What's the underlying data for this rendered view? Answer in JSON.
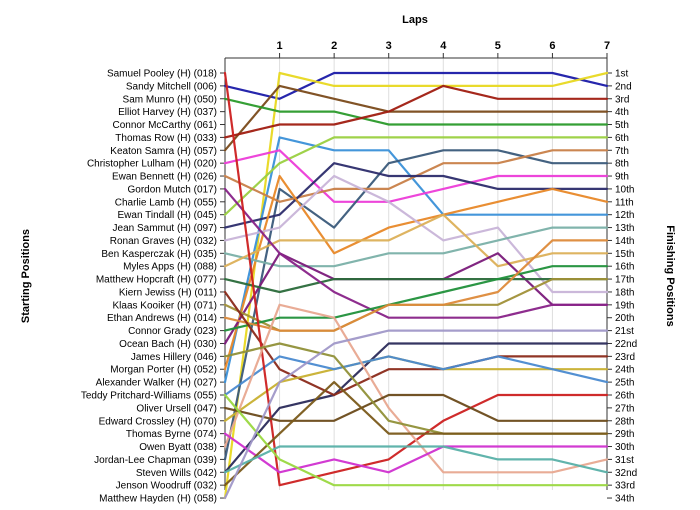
{
  "chart_data": {
    "type": "line",
    "title": "",
    "x_axis_title": "Laps",
    "left_axis_title": "Starting Positions",
    "right_axis_title": "Finishing Positions",
    "laps": [
      1,
      2,
      3,
      4,
      5,
      6,
      7
    ],
    "x_range": [
      0,
      7
    ],
    "y_range": [
      1,
      34
    ],
    "grid": "vertical lines at each lap",
    "drivers": [
      "Samuel Pooley (H) (018)",
      "Sandy Mitchell (006)",
      "Sam Munro (H) (050)",
      "Elliot Harvey (H) (037)",
      "Connor McCarthy (061)",
      "Thomas Row (H) (033)",
      "Keaton Samra (H) (057)",
      "Christopher Lulham (H) (020)",
      "Ewan Bennett (H) (026)",
      "Gordon Mutch (017)",
      "Charlie Lamb (H) (055)",
      "Ewan Tindall (H) (045)",
      "Jean Sammut (H) (097)",
      "Ronan Graves (H) (032)",
      "Ben Kasperczak (H) (035)",
      "Myles Apps (H) (088)",
      "Matthew Hopcraft (H) (077)",
      "Kiern Jewiss (H) (011)",
      "Klaas Kooiker (H) (071)",
      "Ethan Andrews (H) (014)",
      "Connor Grady (023)",
      "Ocean Bach (H) (030)",
      "James Hillery (046)",
      "Morgan Porter (H) (052)",
      "Alexander Walker (H) (027)",
      "Teddy Pritchard-Williams (055)",
      "Oliver Ursell (047)",
      "Edward Crossley (H) (070)",
      "Thomas Byrne (074)",
      "Owen Byatt (038)",
      "Jordan-Lee Chapman (039)",
      "Steven Wills (042)",
      "Jenson Woodruff (032)",
      "Matthew Hayden (H) (058)"
    ],
    "finishing_positions": [
      "1st",
      "2nd",
      "3rd",
      "4th",
      "5th",
      "6th",
      "7th",
      "8th",
      "9th",
      "10th",
      "11th",
      "12th",
      "13th",
      "14th",
      "15th",
      "16th",
      "17th",
      "18th",
      "19th",
      "20th",
      "21st",
      "22nd",
      "23rd",
      "24th",
      "25th",
      "26th",
      "27th",
      "28th",
      "29th",
      "30th",
      "31st",
      "32nd",
      "33rd",
      "34th"
    ],
    "series": [
      {
        "color": "#1a1aa8",
        "positions": [
          2,
          3,
          1,
          1,
          1,
          1,
          1,
          2
        ]
      },
      {
        "color": "#e8d820",
        "positions": [
          34,
          1,
          2,
          2,
          2,
          2,
          2,
          1
        ]
      },
      {
        "color": "#7a4a1a",
        "positions": [
          7,
          2,
          3,
          4,
          4,
          4,
          4,
          4
        ]
      },
      {
        "color": "#2a9a2a",
        "positions": [
          3,
          4,
          4,
          5,
          5,
          5,
          5,
          5
        ]
      },
      {
        "color": "#a01c10",
        "positions": [
          6,
          5,
          5,
          4,
          2,
          3,
          3,
          3
        ]
      },
      {
        "color": "#3a90d8",
        "positions": [
          25,
          6,
          7,
          7,
          12,
          12,
          12,
          12
        ]
      },
      {
        "color": "#9ad040",
        "positions": [
          12,
          8,
          6,
          6,
          6,
          6,
          6,
          6
        ]
      },
      {
        "color": "#ec3cd8",
        "positions": [
          8,
          7,
          11,
          11,
          10,
          9,
          9,
          9
        ]
      },
      {
        "color": "#3a5a7a",
        "positions": [
          31,
          10,
          13,
          8,
          7,
          7,
          8,
          8
        ]
      },
      {
        "color": "#c88048",
        "positions": [
          9,
          11,
          10,
          10,
          8,
          8,
          7,
          7
        ]
      },
      {
        "color": "#2c2c6c",
        "positions": [
          13,
          12,
          8,
          9,
          9,
          10,
          10,
          10
        ]
      },
      {
        "color": "#e88828",
        "positions": [
          24,
          9,
          15,
          13,
          12,
          11,
          10,
          11
        ]
      },
      {
        "color": "#c8b4d8",
        "positions": [
          14,
          13,
          9,
          11,
          14,
          13,
          18,
          18
        ]
      },
      {
        "color": "#7ab0a8",
        "positions": [
          15,
          16,
          16,
          15,
          15,
          14,
          13,
          13
        ]
      },
      {
        "color": "#dcb058",
        "positions": [
          16,
          14,
          14,
          14,
          12,
          16,
          15,
          15
        ]
      },
      {
        "color": "#7a1a7a",
        "positions": [
          22,
          15,
          17,
          17,
          17,
          15,
          19,
          19
        ]
      },
      {
        "color": "#2a6a3a",
        "positions": [
          17,
          18,
          17,
          17,
          17,
          17,
          17,
          17
        ]
      },
      {
        "color": "#882288",
        "positions": [
          10,
          15,
          18,
          20,
          20,
          20,
          19,
          19
        ]
      },
      {
        "color": "#a09038",
        "positions": [
          19,
          21,
          21,
          19,
          19,
          19,
          17,
          17
        ]
      },
      {
        "color": "#20903a",
        "positions": [
          21,
          20,
          20,
          19,
          18,
          17,
          16,
          16
        ]
      },
      {
        "color": "#dd8a3a",
        "positions": [
          20,
          21,
          21,
          19,
          19,
          18,
          14,
          14
        ]
      },
      {
        "color": "#2a2a5a",
        "positions": [
          32,
          27,
          26,
          22,
          22,
          22,
          22,
          22
        ]
      },
      {
        "color": "#8a2a1a",
        "positions": [
          18,
          24,
          26,
          24,
          24,
          23,
          23,
          23
        ]
      },
      {
        "color": "#c8b030",
        "positions": [
          28,
          25,
          24,
          23,
          24,
          24,
          24,
          24
        ]
      },
      {
        "color": "#4a8ad0",
        "positions": [
          26,
          23,
          24,
          23,
          24,
          23,
          24,
          25
        ]
      },
      {
        "color": "#cc2020",
        "positions": [
          1,
          33,
          32,
          31,
          28,
          26,
          26,
          26
        ]
      },
      {
        "color": "#e8a890",
        "positions": [
          30,
          19,
          20,
          27,
          32,
          32,
          32,
          31
        ]
      },
      {
        "color": "#6a4a1a",
        "positions": [
          27,
          28,
          28,
          26,
          26,
          28,
          28,
          28
        ]
      },
      {
        "color": "#909038",
        "positions": [
          23,
          22,
          23,
          28,
          29,
          29,
          29,
          29
        ]
      },
      {
        "color": "#d030d0",
        "positions": [
          29,
          32,
          31,
          32,
          30,
          30,
          30,
          30
        ]
      },
      {
        "color": "#7a5a1a",
        "positions": [
          33,
          29,
          25,
          29,
          29,
          29,
          29,
          29
        ]
      },
      {
        "color": "#58b0a8",
        "positions": [
          32,
          30,
          30,
          30,
          30,
          31,
          31,
          32
        ]
      },
      {
        "color": "#9ad840",
        "positions": [
          26,
          31,
          33,
          33,
          33,
          33,
          33,
          33
        ]
      },
      {
        "color": "#a098c8",
        "positions": [
          34,
          25,
          22,
          21,
          21,
          21,
          21,
          21
        ]
      }
    ]
  }
}
